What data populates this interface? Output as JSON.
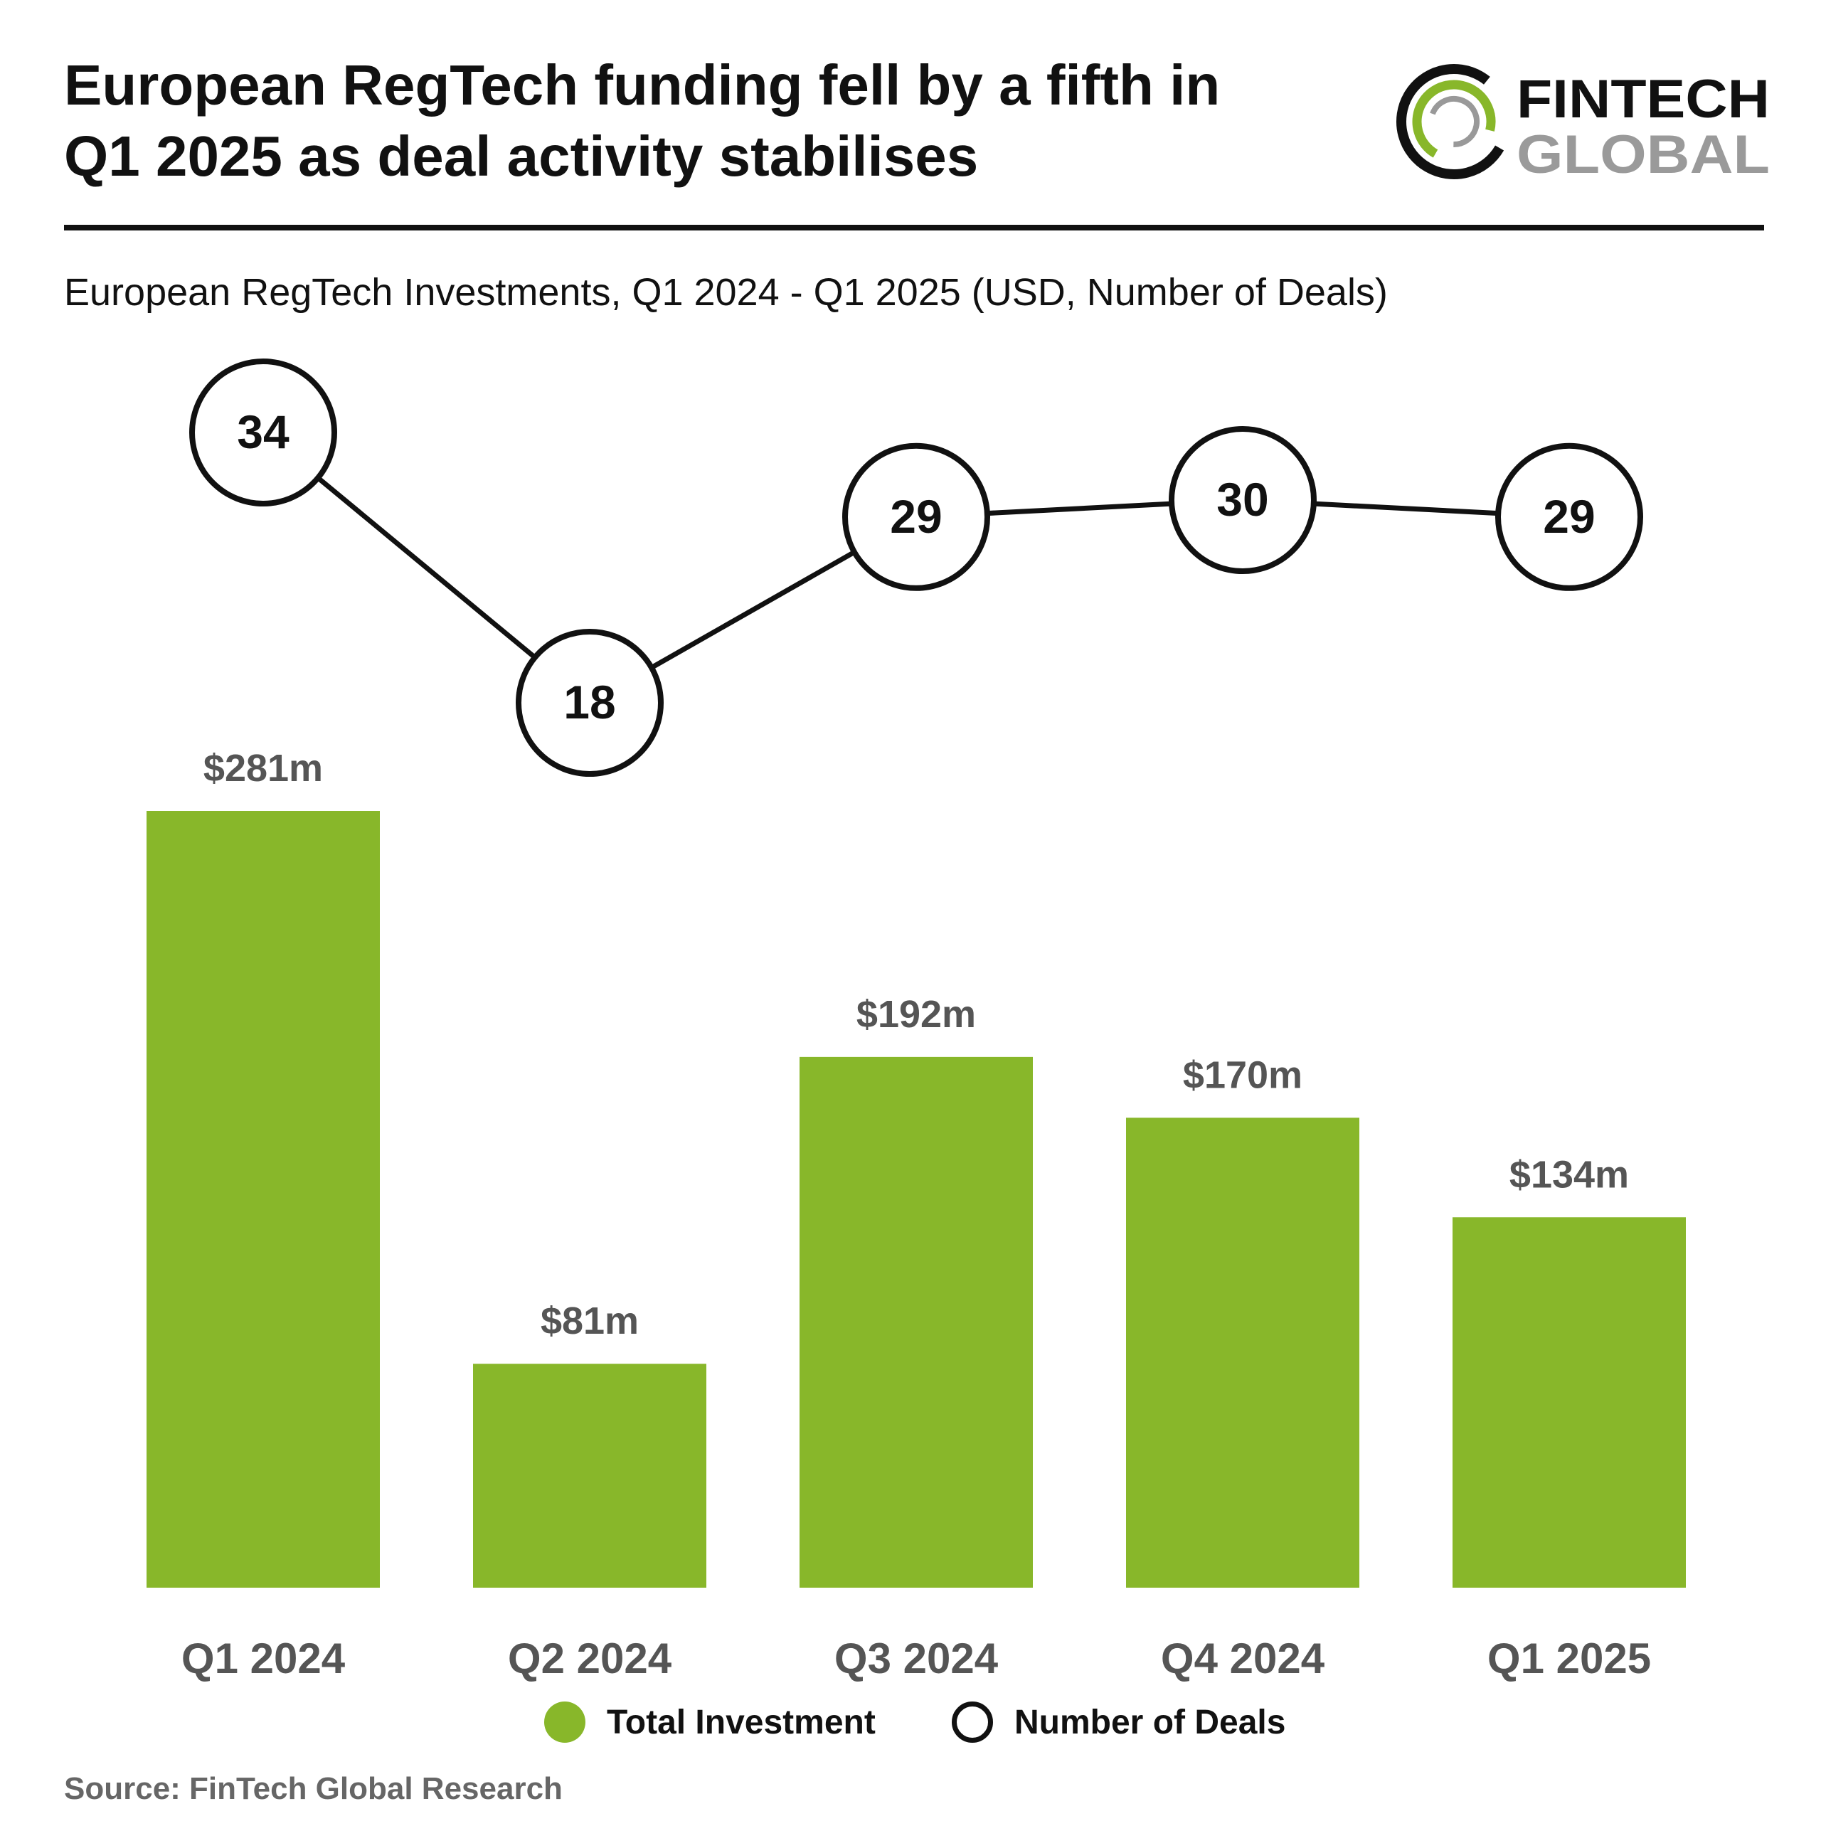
{
  "header": {
    "title_line1": "European RegTech funding fell by a fifth in",
    "title_line2": "Q1 2025 as deal activity stabilises",
    "subtitle": "European RegTech Investments, Q1 2024 - Q1 2025 (USD, Number of Deals)"
  },
  "logo": {
    "word1": "FINTECH",
    "word2": "GLOBAL"
  },
  "chart_data": {
    "type": "bar",
    "categories": [
      "Q1 2024",
      "Q2 2024",
      "Q3 2024",
      "Q4 2024",
      "Q1 2025"
    ],
    "series": [
      {
        "name": "Total Investment",
        "type": "bar",
        "values": [
          281,
          81,
          192,
          170,
          134
        ],
        "labels": [
          "$281m",
          "$81m",
          "$192m",
          "$170m",
          "$134m"
        ],
        "color": "#88b72a"
      },
      {
        "name": "Number of Deals",
        "type": "line",
        "values": [
          34,
          18,
          29,
          30,
          29
        ],
        "color": "#111111"
      }
    ],
    "grid": false,
    "legend_position": "bottom"
  },
  "legend": {
    "investment_label": "Total Investment",
    "deals_label": "Number of Deals"
  },
  "source": "Source: FinTech Global Research",
  "colors": {
    "accent": "#88b72a",
    "tick_label": "#555555",
    "value_label": "#555555"
  }
}
